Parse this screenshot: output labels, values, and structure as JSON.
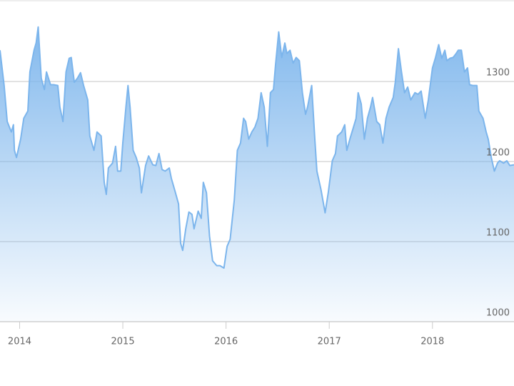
{
  "chart_data": {
    "type": "area",
    "color": "#7cb5ec",
    "x": [
      2013.81,
      2013.85,
      2013.88,
      2013.92,
      2013.94,
      2013.95,
      2013.97,
      2014.01,
      2014.04,
      2014.08,
      2014.1,
      2014.14,
      2014.16,
      2014.18,
      2014.21,
      2014.24,
      2014.26,
      2014.3,
      2014.33,
      2014.37,
      2014.39,
      2014.42,
      2014.45,
      2014.48,
      2014.5,
      2014.53,
      2014.56,
      2014.59,
      2014.62,
      2014.66,
      2014.68,
      2014.72,
      2014.75,
      2014.79,
      2014.82,
      2014.84,
      2014.86,
      2014.9,
      2014.93,
      2014.95,
      2014.98,
      2015.0,
      2015.03,
      2015.05,
      2015.07,
      2015.1,
      2015.13,
      2015.16,
      2015.18,
      2015.22,
      2015.25,
      2015.29,
      2015.32,
      2015.35,
      2015.38,
      2015.41,
      2015.45,
      2015.47,
      2015.51,
      2015.54,
      2015.56,
      2015.58,
      2015.61,
      2015.64,
      2015.67,
      2015.69,
      2015.73,
      2015.76,
      2015.78,
      2015.81,
      2015.84,
      2015.87,
      2015.91,
      2015.94,
      2015.98,
      2016.01,
      2016.04,
      2016.08,
      2016.11,
      2016.14,
      2016.17,
      2016.19,
      2016.22,
      2016.25,
      2016.28,
      2016.31,
      2016.34,
      2016.37,
      2016.4,
      2016.43,
      2016.46,
      2016.48,
      2016.51,
      2016.54,
      2016.57,
      2016.59,
      2016.62,
      2016.65,
      2016.68,
      2016.71,
      2016.74,
      2016.77,
      2016.79,
      2016.83,
      2016.86,
      2016.88,
      2016.92,
      2016.96,
      2016.99,
      2017.03,
      2017.06,
      2017.08,
      2017.12,
      2017.15,
      2017.17,
      2017.2,
      2017.23,
      2017.26,
      2017.28,
      2017.31,
      2017.34,
      2017.37,
      2017.4,
      2017.42,
      2017.46,
      2017.49,
      2017.52,
      2017.55,
      2017.58,
      2017.62,
      2017.64,
      2017.67,
      2017.7,
      2017.73,
      2017.76,
      2017.79,
      2017.83,
      2017.86,
      2017.89,
      2017.93,
      2017.96,
      2018.0,
      2018.03,
      2018.06,
      2018.09,
      2018.12,
      2018.14,
      2018.17,
      2018.2,
      2018.23,
      2018.25,
      2018.28,
      2018.31,
      2018.34,
      2018.36,
      2018.39,
      2018.43,
      2018.45,
      2018.49,
      2018.52,
      2018.54,
      2018.57,
      2018.6,
      2018.63,
      2018.65,
      2018.69,
      2018.72,
      2018.75,
      2018.79
    ],
    "values": [
      1339,
      1295,
      1250,
      1237,
      1246,
      1214,
      1205,
      1228,
      1254,
      1263,
      1312,
      1339,
      1348,
      1368,
      1304,
      1290,
      1312,
      1296,
      1296,
      1295,
      1268,
      1250,
      1312,
      1329,
      1330,
      1299,
      1304,
      1311,
      1295,
      1277,
      1232,
      1214,
      1237,
      1232,
      1174,
      1159,
      1192,
      1198,
      1219,
      1188,
      1188,
      1223,
      1268,
      1295,
      1268,
      1214,
      1205,
      1192,
      1161,
      1195,
      1207,
      1196,
      1195,
      1210,
      1190,
      1188,
      1192,
      1179,
      1161,
      1147,
      1098,
      1089,
      1116,
      1137,
      1134,
      1116,
      1138,
      1129,
      1174,
      1161,
      1107,
      1076,
      1070,
      1070,
      1067,
      1094,
      1103,
      1152,
      1214,
      1223,
      1254,
      1250,
      1228,
      1237,
      1243,
      1254,
      1286,
      1268,
      1219,
      1286,
      1290,
      1321,
      1362,
      1330,
      1348,
      1335,
      1339,
      1323,
      1330,
      1326,
      1286,
      1259,
      1268,
      1295,
      1228,
      1188,
      1165,
      1136,
      1161,
      1201,
      1210,
      1232,
      1237,
      1246,
      1214,
      1228,
      1241,
      1254,
      1286,
      1272,
      1228,
      1254,
      1268,
      1280,
      1250,
      1246,
      1223,
      1254,
      1268,
      1280,
      1299,
      1341,
      1312,
      1286,
      1293,
      1277,
      1286,
      1284,
      1288,
      1254,
      1277,
      1317,
      1330,
      1346,
      1329,
      1339,
      1326,
      1329,
      1330,
      1335,
      1339,
      1339,
      1312,
      1317,
      1296,
      1295,
      1295,
      1263,
      1254,
      1237,
      1228,
      1205,
      1188,
      1198,
      1201,
      1198,
      1201,
      1195,
      1196
    ],
    "xlim": [
      2013.81,
      2018.79
    ],
    "ylim": [
      1000,
      1400
    ],
    "xticks": [
      2014,
      2015,
      2016,
      2017,
      2018
    ],
    "yticks": [
      1000,
      1100,
      1200,
      1300
    ],
    "grid": true
  }
}
